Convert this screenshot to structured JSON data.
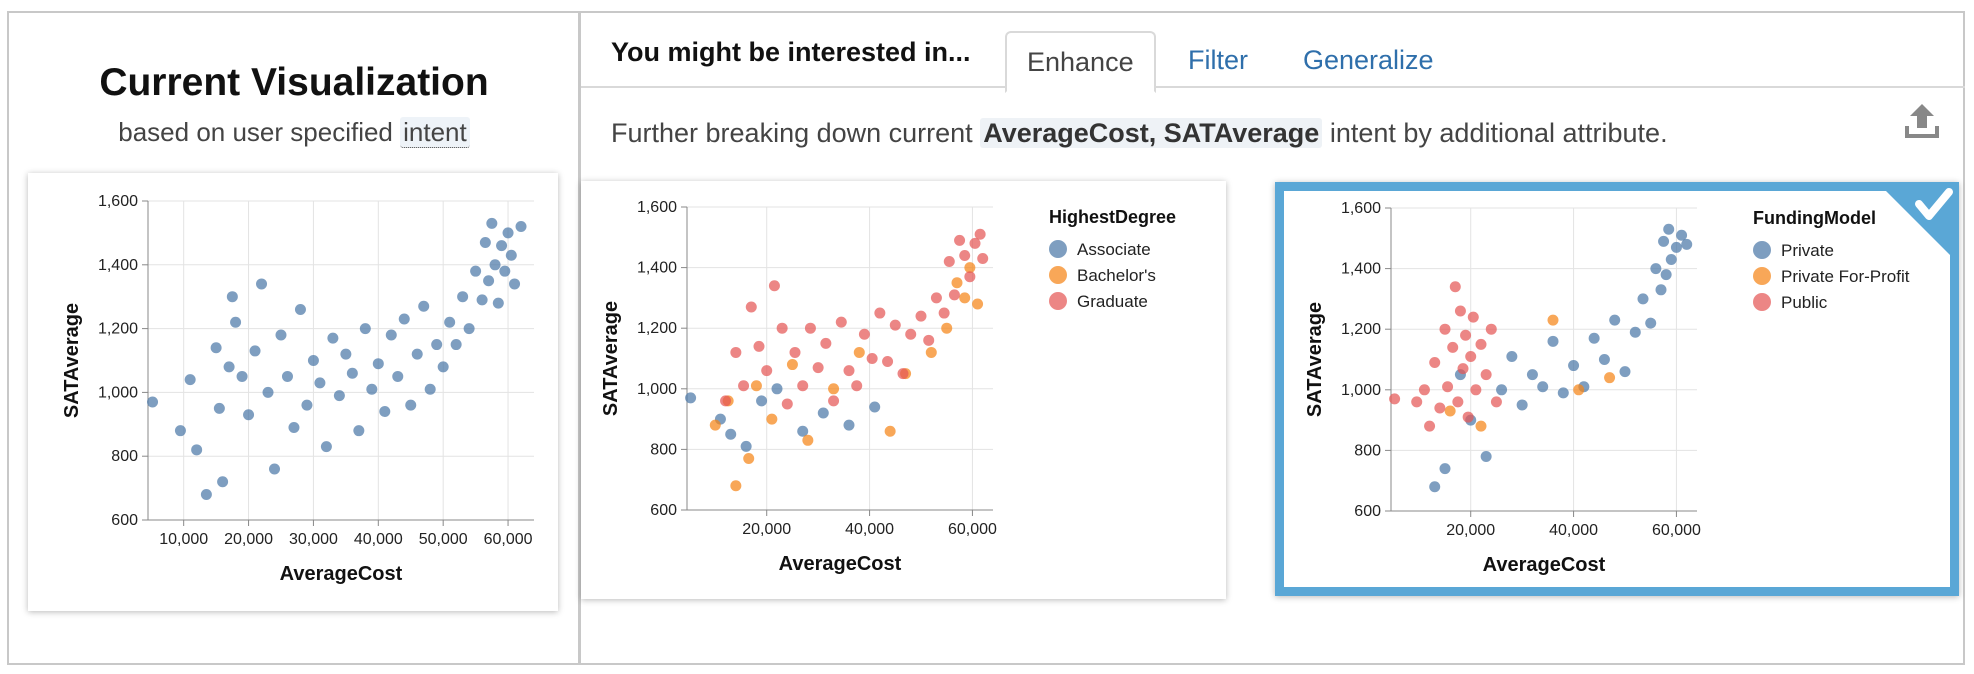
{
  "left": {
    "title": "Current Visualization",
    "subtitle_prefix": "based on user specified",
    "subtitle_intent": "intent"
  },
  "right": {
    "rec_title": "You might be interested in...",
    "tabs": [
      {
        "label": "Enhance",
        "active": true
      },
      {
        "label": "Filter",
        "active": false
      },
      {
        "label": "Generalize",
        "active": false
      }
    ],
    "desc_prefix": "Further breaking down current",
    "desc_highlight": "AverageCost, SATAverage",
    "desc_suffix": "intent by additional attribute.",
    "export_icon": "upload-icon",
    "selected_icon": "check-icon"
  },
  "colors": {
    "blue": "#4c78a8",
    "orange": "#f58518",
    "red": "#e45756",
    "selected_border": "#5aa7d6",
    "link": "#2f6fab"
  },
  "chart_data": [
    {
      "id": "current",
      "type": "scatter",
      "xlabel": "AverageCost",
      "ylabel": "SATAverage",
      "xlim": [
        4500,
        64000
      ],
      "ylim": [
        600,
        1600
      ],
      "xticks": [
        10000,
        20000,
        30000,
        40000,
        50000,
        60000
      ],
      "yticks": [
        600,
        800,
        1000,
        1200,
        1400,
        1600
      ],
      "grid": true,
      "legend": null,
      "series": [
        {
          "color": "#4c78a8",
          "points": [
            [
              5200,
              970
            ],
            [
              9500,
              880
            ],
            [
              11000,
              1040
            ],
            [
              12000,
              820
            ],
            [
              13500,
              680
            ],
            [
              15000,
              1140
            ],
            [
              15500,
              950
            ],
            [
              16000,
              720
            ],
            [
              17000,
              1080
            ],
            [
              17500,
              1300
            ],
            [
              18000,
              1220
            ],
            [
              19000,
              1050
            ],
            [
              20000,
              930
            ],
            [
              21000,
              1130
            ],
            [
              22000,
              1340
            ],
            [
              23000,
              1000
            ],
            [
              24000,
              760
            ],
            [
              25000,
              1180
            ],
            [
              26000,
              1050
            ],
            [
              27000,
              890
            ],
            [
              28000,
              1260
            ],
            [
              29000,
              960
            ],
            [
              30000,
              1100
            ],
            [
              31000,
              1030
            ],
            [
              32000,
              830
            ],
            [
              33000,
              1170
            ],
            [
              34000,
              990
            ],
            [
              35000,
              1120
            ],
            [
              36000,
              1060
            ],
            [
              37000,
              880
            ],
            [
              38000,
              1200
            ],
            [
              39000,
              1010
            ],
            [
              40000,
              1090
            ],
            [
              41000,
              940
            ],
            [
              42000,
              1180
            ],
            [
              43000,
              1050
            ],
            [
              44000,
              1230
            ],
            [
              45000,
              960
            ],
            [
              46000,
              1120
            ],
            [
              47000,
              1270
            ],
            [
              48000,
              1010
            ],
            [
              49000,
              1150
            ],
            [
              50000,
              1080
            ],
            [
              51000,
              1220
            ],
            [
              52000,
              1150
            ],
            [
              53000,
              1300
            ],
            [
              54000,
              1200
            ],
            [
              55000,
              1380
            ],
            [
              56000,
              1290
            ],
            [
              56500,
              1470
            ],
            [
              57000,
              1350
            ],
            [
              57500,
              1530
            ],
            [
              58000,
              1400
            ],
            [
              58500,
              1280
            ],
            [
              59000,
              1460
            ],
            [
              59500,
              1380
            ],
            [
              60000,
              1500
            ],
            [
              60500,
              1430
            ],
            [
              61000,
              1340
            ],
            [
              62000,
              1520
            ]
          ]
        }
      ]
    },
    {
      "id": "highest-degree",
      "type": "scatter",
      "xlabel": "AverageCost",
      "ylabel": "SATAverage",
      "xlim": [
        4500,
        64000
      ],
      "ylim": [
        600,
        1600
      ],
      "xticks": [
        20000,
        40000,
        60000
      ],
      "yticks": [
        600,
        800,
        1000,
        1200,
        1400,
        1600
      ],
      "grid": true,
      "legend": {
        "title": "HighestDegree",
        "placement": "top-right"
      },
      "series": [
        {
          "name": "Associate",
          "color": "#4c78a8",
          "points": [
            [
              5200,
              970
            ],
            [
              11000,
              900
            ],
            [
              13000,
              850
            ],
            [
              16000,
              810
            ],
            [
              19000,
              960
            ],
            [
              22000,
              1000
            ],
            [
              27000,
              860
            ],
            [
              31000,
              920
            ],
            [
              36000,
              880
            ],
            [
              41000,
              940
            ]
          ]
        },
        {
          "name": "Bachelor's",
          "color": "#f58518",
          "points": [
            [
              10000,
              880
            ],
            [
              12500,
              960
            ],
            [
              14000,
              680
            ],
            [
              16500,
              770
            ],
            [
              18000,
              1010
            ],
            [
              21000,
              900
            ],
            [
              25000,
              1080
            ],
            [
              28000,
              830
            ],
            [
              33000,
              1000
            ],
            [
              38000,
              1120
            ],
            [
              44000,
              860
            ],
            [
              47000,
              1050
            ],
            [
              52000,
              1120
            ],
            [
              55000,
              1200
            ],
            [
              57000,
              1350
            ],
            [
              58500,
              1300
            ],
            [
              59500,
              1400
            ],
            [
              61000,
              1280
            ]
          ]
        },
        {
          "name": "Graduate",
          "color": "#e45756",
          "points": [
            [
              12000,
              960
            ],
            [
              14000,
              1120
            ],
            [
              15500,
              1010
            ],
            [
              17000,
              1270
            ],
            [
              18500,
              1140
            ],
            [
              20000,
              1060
            ],
            [
              21500,
              1340
            ],
            [
              23000,
              1200
            ],
            [
              24000,
              950
            ],
            [
              25500,
              1120
            ],
            [
              27000,
              1010
            ],
            [
              28500,
              1200
            ],
            [
              30000,
              1070
            ],
            [
              31500,
              1150
            ],
            [
              33000,
              960
            ],
            [
              34500,
              1220
            ],
            [
              36000,
              1060
            ],
            [
              37500,
              1010
            ],
            [
              39000,
              1180
            ],
            [
              40500,
              1100
            ],
            [
              42000,
              1250
            ],
            [
              43500,
              1090
            ],
            [
              45000,
              1210
            ],
            [
              46500,
              1050
            ],
            [
              48000,
              1180
            ],
            [
              50000,
              1240
            ],
            [
              51500,
              1160
            ],
            [
              53000,
              1300
            ],
            [
              54500,
              1250
            ],
            [
              55500,
              1420
            ],
            [
              56500,
              1310
            ],
            [
              57500,
              1490
            ],
            [
              58500,
              1440
            ],
            [
              59500,
              1370
            ],
            [
              60500,
              1480
            ],
            [
              61500,
              1510
            ],
            [
              62000,
              1430
            ]
          ]
        }
      ]
    },
    {
      "id": "funding-model",
      "type": "scatter",
      "xlabel": "AverageCost",
      "ylabel": "SATAverage",
      "xlim": [
        4500,
        64000
      ],
      "ylim": [
        600,
        1600
      ],
      "xticks": [
        20000,
        40000,
        60000
      ],
      "yticks": [
        600,
        800,
        1000,
        1200,
        1400,
        1600
      ],
      "grid": true,
      "legend": {
        "title": "FundingModel",
        "placement": "top-right"
      },
      "series": [
        {
          "name": "Private",
          "color": "#4c78a8",
          "points": [
            [
              13000,
              680
            ],
            [
              15000,
              740
            ],
            [
              18000,
              1050
            ],
            [
              20000,
              900
            ],
            [
              23000,
              780
            ],
            [
              26000,
              1000
            ],
            [
              28000,
              1110
            ],
            [
              30000,
              950
            ],
            [
              32000,
              1050
            ],
            [
              34000,
              1010
            ],
            [
              36000,
              1160
            ],
            [
              38000,
              990
            ],
            [
              40000,
              1080
            ],
            [
              42000,
              1010
            ],
            [
              44000,
              1170
            ],
            [
              46000,
              1100
            ],
            [
              48000,
              1230
            ],
            [
              50000,
              1060
            ],
            [
              52000,
              1190
            ],
            [
              53500,
              1300
            ],
            [
              55000,
              1220
            ],
            [
              56000,
              1400
            ],
            [
              57000,
              1330
            ],
            [
              57500,
              1490
            ],
            [
              58000,
              1380
            ],
            [
              58500,
              1530
            ],
            [
              59000,
              1430
            ],
            [
              60000,
              1470
            ],
            [
              61000,
              1510
            ],
            [
              62000,
              1480
            ]
          ]
        },
        {
          "name": "Private For-Profit",
          "color": "#f58518",
          "points": [
            [
              16000,
              930
            ],
            [
              22000,
              880
            ],
            [
              36000,
              1230
            ],
            [
              41000,
              1000
            ],
            [
              47000,
              1040
            ]
          ]
        },
        {
          "name": "Public",
          "color": "#e45756",
          "points": [
            [
              5200,
              970
            ],
            [
              9500,
              960
            ],
            [
              11000,
              1000
            ],
            [
              12000,
              880
            ],
            [
              13000,
              1090
            ],
            [
              14000,
              940
            ],
            [
              15000,
              1200
            ],
            [
              15500,
              1010
            ],
            [
              16500,
              1140
            ],
            [
              17000,
              1340
            ],
            [
              17500,
              960
            ],
            [
              18000,
              1260
            ],
            [
              18500,
              1070
            ],
            [
              19000,
              1180
            ],
            [
              19500,
              910
            ],
            [
              20000,
              1110
            ],
            [
              20500,
              1240
            ],
            [
              21000,
              1000
            ],
            [
              22000,
              1150
            ],
            [
              23000,
              1050
            ],
            [
              24000,
              1200
            ],
            [
              25000,
              960
            ]
          ]
        }
      ]
    }
  ]
}
